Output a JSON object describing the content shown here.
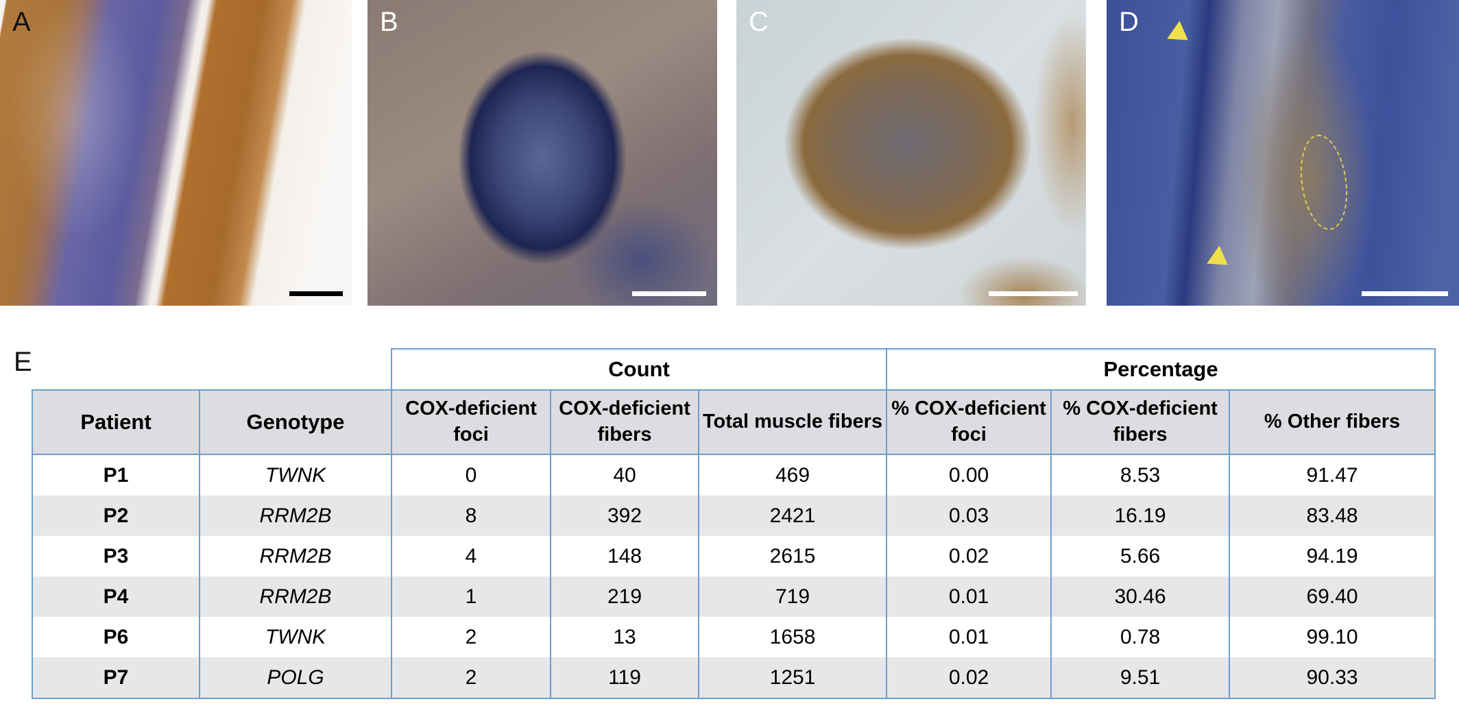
{
  "panels": [
    {
      "letter": "A"
    },
    {
      "letter": "B"
    },
    {
      "letter": "C"
    },
    {
      "letter": "D"
    }
  ],
  "table": {
    "letter": "E",
    "groups": {
      "count": "Count",
      "percentage": "Percentage"
    },
    "headers": [
      "Patient",
      "Genotype",
      "COX-deficient foci",
      "COX-deficient fibers",
      "Total muscle fibers",
      "% COX-deficient foci",
      "% COX-deficient fibers",
      "% Other fibers"
    ],
    "rows": [
      [
        "P1",
        "TWNK",
        "0",
        "40",
        "469",
        "0.00",
        "8.53",
        "91.47"
      ],
      [
        "P2",
        "RRM2B",
        "8",
        "392",
        "2421",
        "0.03",
        "16.19",
        "83.48"
      ],
      [
        "P3",
        "RRM2B",
        "4",
        "148",
        "2615",
        "0.02",
        "5.66",
        "94.19"
      ],
      [
        "P4",
        "RRM2B",
        "1",
        "219",
        "719",
        "0.01",
        "30.46",
        "69.40"
      ],
      [
        "P6",
        "TWNK",
        "2",
        "13",
        "1658",
        "0.01",
        "0.78",
        "99.10"
      ],
      [
        "P7",
        "POLG",
        "2",
        "119",
        "1251",
        "0.02",
        "9.51",
        "90.33"
      ]
    ]
  }
}
